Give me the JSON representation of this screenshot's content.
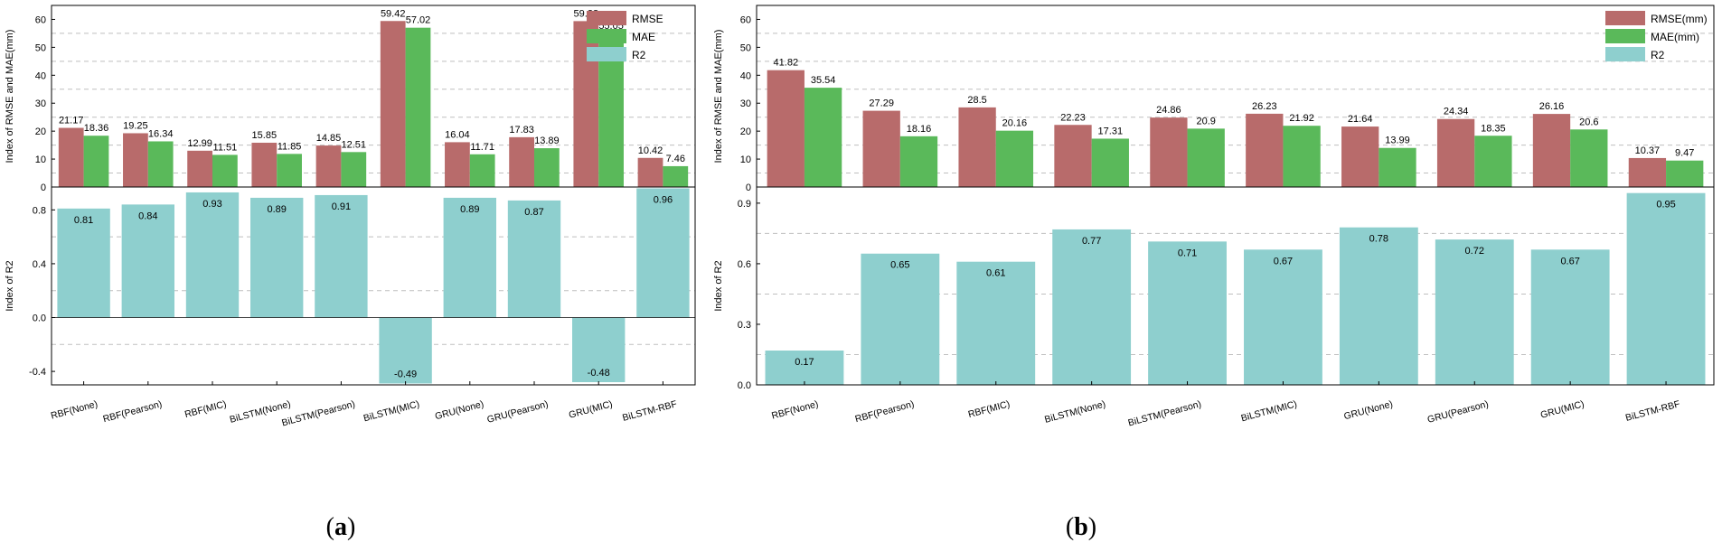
{
  "colors": {
    "rmse": "#b86b6b",
    "mae": "#5ab95a",
    "r2": "#8ecfce",
    "grid": "#bfbfbf"
  },
  "chart_data": [
    {
      "type": "bar",
      "panel_label": "a",
      "categories": [
        "RBF(None)",
        "RBF(Pearson)",
        "RBF(MIC)",
        "BiLSTM(None)",
        "BiLSTM(Pearson)",
        "BiLSTM(MIC)",
        "GRU(None)",
        "GRU(Pearson)",
        "GRU(MIC)",
        "BiLSTM-RBF"
      ],
      "top": {
        "ylabel": "Index of RMSE and MAE(mm)",
        "ylim": [
          0,
          65
        ],
        "yticks": [
          0,
          10,
          20,
          30,
          40,
          50,
          60
        ],
        "gridlines": [
          5,
          15,
          25,
          35,
          45,
          55
        ],
        "series": [
          {
            "name": "RMSE",
            "values": [
              21.17,
              19.25,
              12.99,
              15.85,
              14.85,
              59.42,
              16.04,
              17.83,
              59.38,
              10.42
            ]
          },
          {
            "name": "MAE",
            "values": [
              18.36,
              16.34,
              11.51,
              11.85,
              12.51,
              57.02,
              11.71,
              13.89,
              55.05,
              7.46
            ]
          }
        ]
      },
      "bottom": {
        "ylabel": "Index of R2",
        "ylim": [
          -0.5,
          0.97
        ],
        "yticks": [
          -0.4,
          0.0,
          0.4,
          0.8
        ],
        "gridlines": [
          -0.2,
          0.2,
          0.6
        ],
        "series": [
          {
            "name": "R2",
            "values": [
              0.81,
              0.84,
              0.93,
              0.89,
              0.91,
              -0.49,
              0.89,
              0.87,
              -0.48,
              0.96
            ]
          }
        ]
      },
      "legend": [
        "RMSE",
        "MAE",
        "R2"
      ]
    },
    {
      "type": "bar",
      "panel_label": "b",
      "categories": [
        "RBF(None)",
        "RBF(Pearson)",
        "RBF(MIC)",
        "BiLSTM(None)",
        "BiLSTM(Pearson)",
        "BiLSTM(MIC)",
        "GRU(None)",
        "GRU(Pearson)",
        "GRU(MIC)",
        "BiLSTM-RBF"
      ],
      "top": {
        "ylabel": "Index of RMSE and MAE(mm)",
        "ylim": [
          0,
          65
        ],
        "yticks": [
          0,
          10,
          20,
          30,
          40,
          50,
          60
        ],
        "gridlines": [
          5,
          15,
          25,
          35,
          45,
          55
        ],
        "series": [
          {
            "name": "RMSE(mm)",
            "values": [
              41.82,
              27.29,
              28.5,
              22.23,
              24.86,
              26.23,
              21.64,
              24.34,
              26.16,
              10.37
            ]
          },
          {
            "name": "MAE(mm)",
            "values": [
              35.54,
              18.16,
              20.16,
              17.31,
              20.9,
              21.92,
              13.99,
              18.35,
              20.6,
              9.47
            ]
          }
        ]
      },
      "bottom": {
        "ylabel": "Index of R2",
        "ylim": [
          0,
          0.98
        ],
        "yticks": [
          0.0,
          0.3,
          0.6,
          0.9
        ],
        "gridlines": [
          0.15,
          0.45,
          0.75
        ],
        "series": [
          {
            "name": "R2",
            "values": [
              0.17,
              0.65,
              0.61,
              0.77,
              0.71,
              0.67,
              0.78,
              0.72,
              0.67,
              0.95
            ]
          }
        ]
      },
      "legend": [
        "RMSE(mm)",
        "MAE(mm)",
        "R2"
      ]
    }
  ]
}
